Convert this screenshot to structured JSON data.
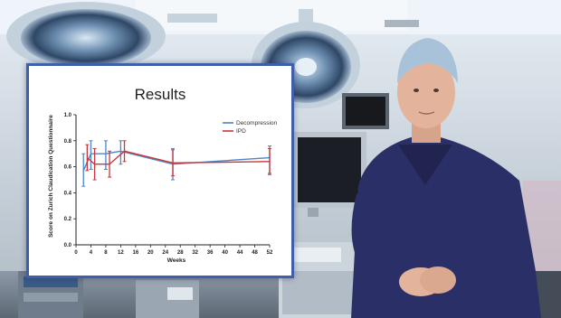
{
  "scene": {
    "colors": {
      "sky": "#e3edf6",
      "wall": "#c9d3dc",
      "scrubs": "#2b2f68",
      "cap": "#a8c2da",
      "skin": "#e3b49b",
      "slide_border": "#3f5fa8"
    },
    "icons": [
      "surgical-lamp-icon",
      "monitor-icon",
      "equipment-cart-icon",
      "surgeon-figure"
    ]
  },
  "slide": {
    "title": "Results"
  },
  "chart_data": {
    "type": "line",
    "title": "Results",
    "xlabel": "Weeks",
    "ylabel": "Score on Zurich Claudication Questionnaire",
    "xlim": [
      0,
      52
    ],
    "ylim": [
      0.0,
      1.0
    ],
    "x_ticks": [
      0,
      4,
      8,
      12,
      16,
      20,
      24,
      28,
      32,
      36,
      40,
      44,
      48,
      52
    ],
    "y_ticks": [
      0.0,
      0.2,
      0.4,
      0.6,
      0.8,
      1.0
    ],
    "y_tick_labels": [
      "0.0",
      "0.2",
      "0.4",
      "0.6",
      "0.8",
      "1.0"
    ],
    "legend_position": "top-right",
    "grid": false,
    "series": [
      {
        "name": "Decompression",
        "color": "#4a86c8",
        "x": [
          2,
          4,
          8,
          12,
          26,
          52
        ],
        "y": [
          0.57,
          0.7,
          0.7,
          0.72,
          0.62,
          0.67
        ],
        "err_low": [
          0.45,
          0.58,
          0.58,
          0.62,
          0.5,
          0.55
        ],
        "err_high": [
          0.7,
          0.8,
          0.8,
          0.8,
          0.74,
          0.76
        ]
      },
      {
        "name": "IPD",
        "color": "#c8363a",
        "x": [
          3,
          5,
          9,
          13,
          26,
          52
        ],
        "y": [
          0.67,
          0.62,
          0.62,
          0.72,
          0.63,
          0.64
        ],
        "err_low": [
          0.57,
          0.5,
          0.52,
          0.64,
          0.53,
          0.54
        ],
        "err_high": [
          0.77,
          0.74,
          0.72,
          0.8,
          0.73,
          0.74
        ]
      }
    ]
  }
}
